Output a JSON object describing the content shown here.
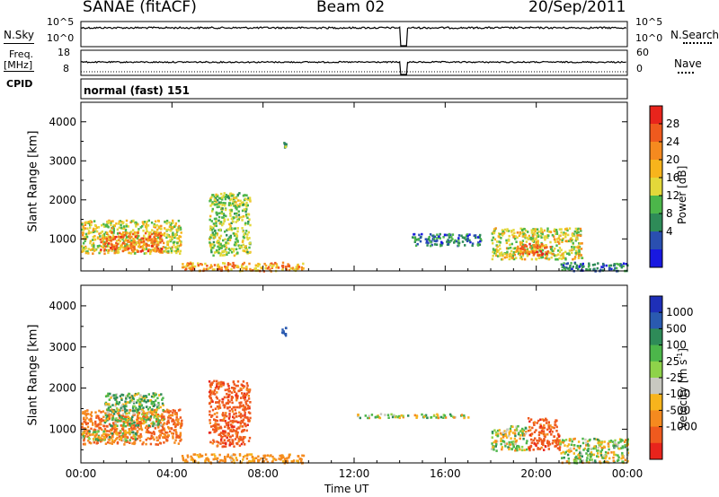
{
  "header": {
    "station": "SANAE (fitACF)",
    "beam": "Beam 02",
    "date": "20/Sep/2011"
  },
  "params": {
    "nsky_label": "N.Sky",
    "nsearch_label": "N.Search",
    "freq_label_1": "Freq.",
    "freq_label_2": "[MHz]",
    "nave_label": "Nave",
    "cpid_label": "CPID",
    "cpid_value": "normal (fast) 151",
    "noise_ticks_left": [
      "10^5",
      "10^0"
    ],
    "noise_ticks_right": [
      "10^5",
      "10^0"
    ],
    "freq_ticks": [
      "18",
      "8"
    ],
    "nave_ticks": [
      "60",
      "0"
    ]
  },
  "colorbars": {
    "power": {
      "title": "Power [dB]",
      "ticks": [
        "28",
        "24",
        "20",
        "16",
        "12",
        "8",
        "4"
      ],
      "colors": [
        "#e8241c",
        "#ef5a1e",
        "#f58a1f",
        "#f7b41c",
        "#e3d83a",
        "#4cb64a",
        "#2e8b58",
        "#2a4fb0",
        "#1818e0"
      ]
    },
    "velocity": {
      "title": "Velocity [m s",
      "title_sup": "-1",
      "title_end": "]",
      "ticks": [
        "1000",
        "500",
        "100",
        "25",
        "-25",
        "-100",
        "-500",
        "-1000"
      ],
      "colors": [
        "#1e2fb8",
        "#2a5ab0",
        "#2e8b58",
        "#4cb64a",
        "#8ed24a",
        "#c8c8c0",
        "#f7b41c",
        "#f58a1f",
        "#ef5a1e",
        "#e8241c"
      ]
    }
  },
  "chart_data": [
    {
      "type": "heatmap",
      "title": "",
      "parameter": "Power",
      "ylabel": "Slant Range [km]",
      "xlabel": "",
      "xlim": [
        0,
        24
      ],
      "ylim": [
        180,
        4500
      ],
      "yticks": [
        1000,
        2000,
        3000,
        4000
      ],
      "xticks": [
        0,
        4,
        8,
        12,
        16,
        20,
        24
      ],
      "xticklabels": [
        "00:00",
        "04:00",
        "08:00",
        "12:00",
        "16:00",
        "20:00",
        "00:00"
      ],
      "scatter_regions": [
        {
          "t0": 0.0,
          "t1": 4.4,
          "r0": 650,
          "r1": 1500,
          "value_db": 14
        },
        {
          "t0": 0.8,
          "t1": 3.6,
          "r0": 700,
          "r1": 1200,
          "value_db": 20
        },
        {
          "t0": 5.6,
          "t1": 7.4,
          "r0": 600,
          "r1": 2200,
          "value_db": 12
        },
        {
          "t0": 4.4,
          "t1": 9.8,
          "r0": 200,
          "r1": 420,
          "value_db": 18
        },
        {
          "t0": 8.8,
          "t1": 9.0,
          "r0": 3300,
          "r1": 3500,
          "value_db": 8
        },
        {
          "t0": 14.5,
          "t1": 17.6,
          "r0": 850,
          "r1": 1150,
          "value_db": 6
        },
        {
          "t0": 18.0,
          "t1": 22.0,
          "r0": 500,
          "r1": 1300,
          "value_db": 14
        },
        {
          "t0": 19.2,
          "t1": 20.6,
          "r0": 600,
          "r1": 900,
          "value_db": 22
        },
        {
          "t0": 21.0,
          "t1": 24.0,
          "r0": 200,
          "r1": 420,
          "value_db": 6
        }
      ]
    },
    {
      "type": "heatmap",
      "title": "",
      "parameter": "Velocity",
      "ylabel": "Slant Range [km]",
      "xlabel": "Time UT",
      "xlim": [
        0,
        24
      ],
      "ylim": [
        180,
        4500
      ],
      "yticks": [
        1000,
        2000,
        3000,
        4000
      ],
      "xticks": [
        0,
        4,
        8,
        12,
        16,
        20,
        24
      ],
      "xticklabels": [
        "00:00",
        "04:00",
        "08:00",
        "12:00",
        "16:00",
        "20:00",
        "00:00"
      ],
      "scatter_regions": [
        {
          "t0": 0.0,
          "t1": 4.4,
          "r0": 650,
          "r1": 1500,
          "value_ms": -300
        },
        {
          "t0": 0.0,
          "t1": 2.4,
          "r0": 750,
          "r1": 1000,
          "value_ms": 0
        },
        {
          "t0": 1.0,
          "t1": 3.6,
          "r0": 1100,
          "r1": 1900,
          "value_ms": 60
        },
        {
          "t0": 5.6,
          "t1": 7.4,
          "r0": 600,
          "r1": 2200,
          "value_ms": -400
        },
        {
          "t0": 4.4,
          "t1": 9.8,
          "r0": 200,
          "r1": 420,
          "value_ms": -150
        },
        {
          "t0": 8.8,
          "t1": 9.0,
          "r0": 3300,
          "r1": 3500,
          "value_ms": 800
        },
        {
          "t0": 12.0,
          "t1": 17.0,
          "r0": 1300,
          "r1": 1400,
          "value_ms": 0
        },
        {
          "t0": 18.0,
          "t1": 19.6,
          "r0": 500,
          "r1": 1100,
          "value_ms": 0
        },
        {
          "t0": 19.6,
          "t1": 21.0,
          "r0": 500,
          "r1": 1300,
          "value_ms": -400
        },
        {
          "t0": 21.0,
          "t1": 24.0,
          "r0": 200,
          "r1": 800,
          "value_ms": 0
        }
      ]
    }
  ]
}
